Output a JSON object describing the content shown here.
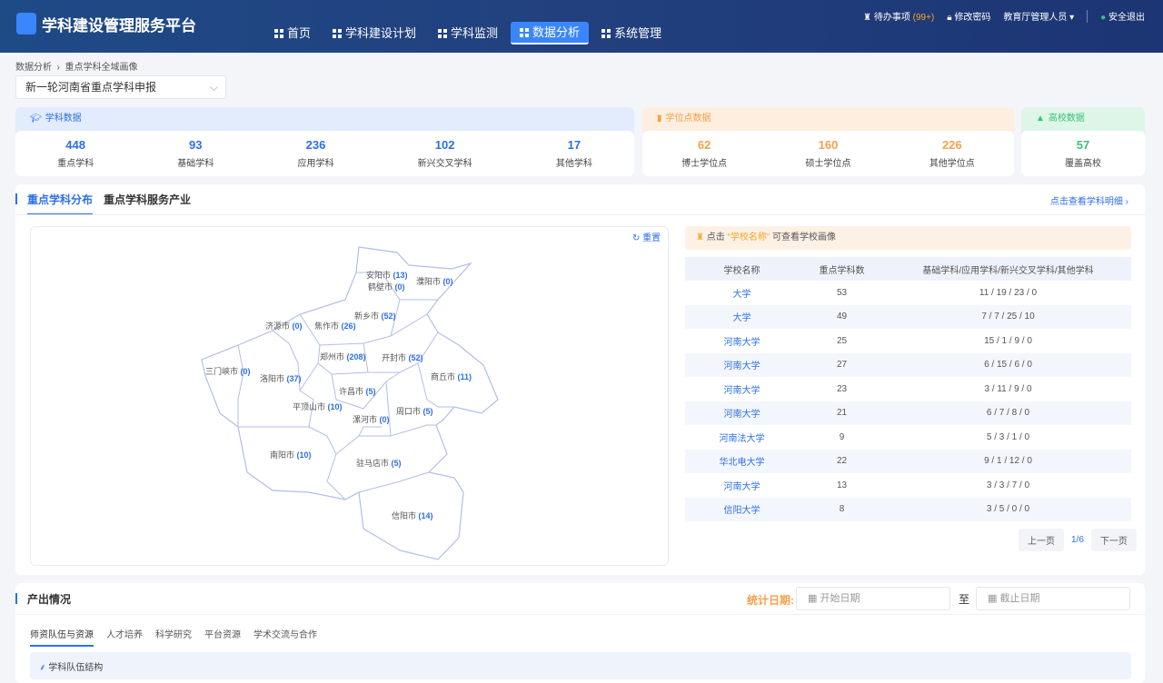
{
  "header": {
    "app_title": "学科建设管理服务平台",
    "nav": [
      "首页",
      "学科建设计划",
      "学科监测",
      "数据分析",
      "系统管理"
    ],
    "active_nav": "数据分析",
    "todo_label": "待办事项",
    "todo_count": "(99+)",
    "change_password": "修改密码",
    "user": "教育厅管理人员",
    "logout": "安全退出"
  },
  "breadcrumb": [
    "数据分析",
    "重点学科全域画像"
  ],
  "project_select": "新一轮河南省重点学科申报",
  "cards": {
    "subject": {
      "title": "学科数据",
      "color": "#2d6fe8",
      "stats": [
        {
          "value": "448",
          "label": "重点学科"
        },
        {
          "value": "93",
          "label": "基础学科"
        },
        {
          "value": "236",
          "label": "应用学科"
        },
        {
          "value": "102",
          "label": "新兴交叉学科"
        },
        {
          "value": "17",
          "label": "其他学科"
        }
      ]
    },
    "degree": {
      "title": "学位点数据",
      "color": "#f5a04a",
      "stats": [
        {
          "value": "62",
          "label": "博士学位点"
        },
        {
          "value": "160",
          "label": "硕士学位点"
        },
        {
          "value": "226",
          "label": "其他学位点"
        }
      ]
    },
    "school": {
      "title": "高校数据",
      "color": "#3cc07a",
      "stats": [
        {
          "value": "57",
          "label": "覆盖高校"
        }
      ]
    }
  },
  "distribution": {
    "tabs": [
      "重点学科分布",
      "重点学科服务产业"
    ],
    "detail_link": "点击查看学科明细",
    "reset": "重置",
    "cities": [
      {
        "name": "安阳市",
        "count": "(13)"
      },
      {
        "name": "鹤壁市",
        "count": "(0)"
      },
      {
        "name": "濮阳市",
        "count": "(0)"
      },
      {
        "name": "新乡市",
        "count": "(52)"
      },
      {
        "name": "济源市",
        "count": "(0)"
      },
      {
        "name": "焦作市",
        "count": "(26)"
      },
      {
        "name": "郑州市",
        "count": "(208)"
      },
      {
        "name": "开封市",
        "count": "(52)"
      },
      {
        "name": "三门峡市",
        "count": "(0)"
      },
      {
        "name": "洛阳市",
        "count": "(37)"
      },
      {
        "name": "商丘市",
        "count": "(11)"
      },
      {
        "name": "许昌市",
        "count": "(5)"
      },
      {
        "name": "平顶山市",
        "count": "(10)"
      },
      {
        "name": "漯河市",
        "count": "(0)"
      },
      {
        "name": "周口市",
        "count": "(5)"
      },
      {
        "name": "南阳市",
        "count": "(10)"
      },
      {
        "name": "驻马店市",
        "count": "(5)"
      },
      {
        "name": "信阳市",
        "count": "(14)"
      }
    ],
    "tip": {
      "prefix": "点击",
      "highlight": "“学校名称”",
      "suffix": "可查看学校画像"
    },
    "columns": [
      "学校名称",
      "重点学科数",
      "基础学科/应用学科/新兴交叉学科/其他学科"
    ],
    "rows": [
      [
        "大学",
        "53",
        "11 / 19 / 23 / 0"
      ],
      [
        "大学",
        "49",
        "7 / 7 / 25 / 10"
      ],
      [
        "河南大学",
        "25",
        "15 / 1 / 9 / 0"
      ],
      [
        "河南大学",
        "27",
        "6 / 15 / 6 / 0"
      ],
      [
        "河南大学",
        "23",
        "3 / 11 / 9 / 0"
      ],
      [
        "河南大学",
        "21",
        "6 / 7 / 8 / 0"
      ],
      [
        "河南法大学",
        "9",
        "5 / 3 / 1 / 0"
      ],
      [
        "华北电大学",
        "22",
        "9 / 1 / 12 / 0"
      ],
      [
        "河南大学",
        "13",
        "3 / 3 / 7 / 0"
      ],
      [
        "信阳大学",
        "8",
        "3 / 5 / 0 / 0"
      ]
    ],
    "pager": {
      "prev": "上一页",
      "page": "1/6",
      "next": "下一页"
    }
  },
  "output": {
    "title": "产出情况",
    "date_label": "统计日期:",
    "start_placeholder": "开始日期",
    "to": "至",
    "end_placeholder": "截止日期",
    "tabs": [
      "师资队伍与资源",
      "人才培养",
      "科学研究",
      "平台资源",
      "学术交流与合作"
    ],
    "section": "学科队伍结构"
  }
}
